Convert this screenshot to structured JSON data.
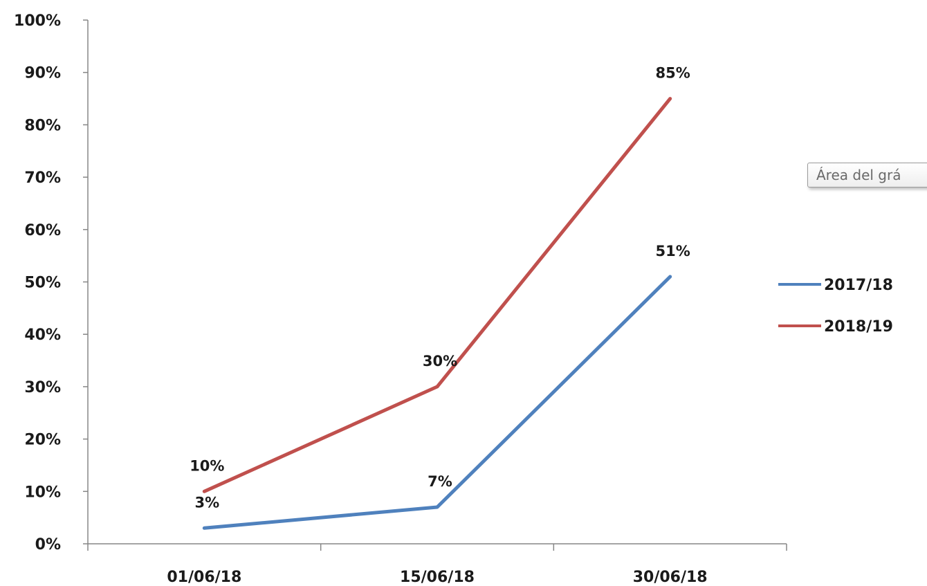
{
  "chart_data": {
    "type": "line",
    "categories": [
      "01/06/18",
      "15/06/18",
      "30/06/18"
    ],
    "series": [
      {
        "name": "2017/18",
        "values": [
          3,
          7,
          51
        ],
        "labels": [
          "3%",
          "7%",
          "51%"
        ],
        "color": "#4f81bd"
      },
      {
        "name": "2018/19",
        "values": [
          10,
          30,
          85
        ],
        "labels": [
          "10%",
          "30%",
          "85%"
        ],
        "color": "#c0504d"
      }
    ],
    "y_ticks": [
      "0%",
      "10%",
      "20%",
      "30%",
      "40%",
      "50%",
      "60%",
      "70%",
      "80%",
      "90%",
      "100%"
    ],
    "ylim": [
      0,
      100
    ],
    "grid": false,
    "legend": "right",
    "title": "",
    "xlabel": "",
    "ylabel": ""
  },
  "tooltip": {
    "text": "Área del grá"
  }
}
